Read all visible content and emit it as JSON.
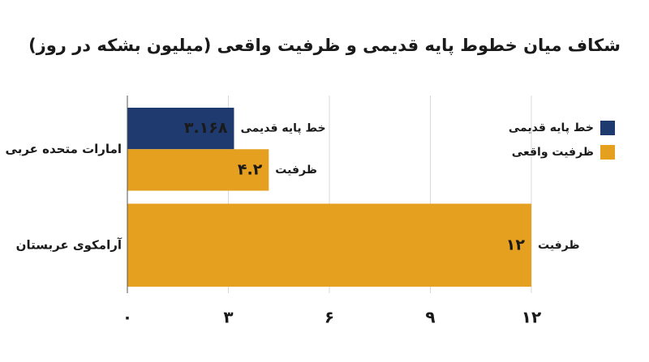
{
  "chart_data": {
    "type": "hbar",
    "title": "شکاف میان خطوط پایه قدیمی و ظرفیت واقعی (میلیون بشکه در روز)",
    "categories": [
      "امارات متحده عربی",
      "آرامکوی عربستان"
    ],
    "series": [
      {
        "name": "خط پایه قدیمی",
        "label": "خط پایه قدیمی",
        "color": "#1f3a6e",
        "values": [
          3.168,
          null
        ],
        "value_labels": [
          "۳.۱۶۸",
          null
        ],
        "value_label_color": "#ffffff"
      },
      {
        "name": "ظرفیت واقعی",
        "label": "ظرفیت",
        "color": "#e6a020",
        "values": [
          4.2,
          12
        ],
        "value_labels": [
          "۴.۲",
          "۱۲"
        ],
        "value_label_color": "#1a1a1a"
      }
    ],
    "xlim": [
      0,
      12
    ],
    "xticks": [
      {
        "value": 0,
        "label": "۰"
      },
      {
        "value": 3,
        "label": "۳"
      },
      {
        "value": 6,
        "label": "۶"
      },
      {
        "value": 9,
        "label": "۹"
      },
      {
        "value": 12,
        "label": "۱۲"
      }
    ],
    "grid": true,
    "legend": "right"
  }
}
